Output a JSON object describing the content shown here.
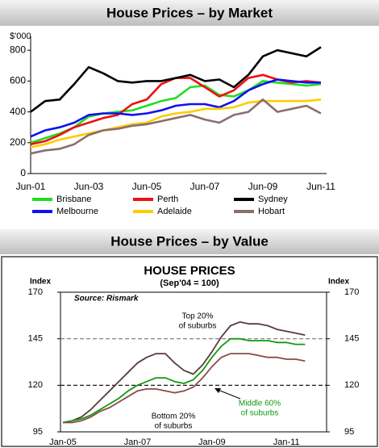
{
  "chart_data": [
    {
      "type": "line",
      "title": "House Prices – by Market",
      "ylabel": "$'000",
      "categories": [
        "Jun-01",
        null,
        null,
        null,
        "Jun-03",
        null,
        null,
        null,
        "Jun-05",
        null,
        null,
        null,
        "Jun-07",
        null,
        null,
        null,
        "Jun-09",
        null,
        null,
        null,
        "Jun-11"
      ],
      "ylim": [
        0,
        890
      ],
      "yticks": [
        0,
        200,
        400,
        600,
        800
      ],
      "legend": "bottom",
      "series": [
        {
          "name": "Brisbane",
          "color": "#22dd22",
          "values": [
            200,
            230,
            260,
            300,
            370,
            390,
            400,
            410,
            440,
            470,
            490,
            560,
            570,
            510,
            500,
            540,
            600,
            590,
            580,
            570,
            580
          ]
        },
        {
          "name": "Perth",
          "color": "#ee1111",
          "values": [
            190,
            210,
            250,
            300,
            330,
            360,
            380,
            450,
            480,
            580,
            620,
            620,
            560,
            500,
            540,
            620,
            640,
            610,
            590,
            600,
            590
          ]
        },
        {
          "name": "Sydney",
          "color": "#000000",
          "values": [
            400,
            470,
            480,
            580,
            690,
            650,
            600,
            590,
            600,
            600,
            620,
            640,
            600,
            610,
            560,
            640,
            760,
            800,
            780,
            760,
            820
          ]
        },
        {
          "name": "Melbourne",
          "color": "#1111ee",
          "values": [
            240,
            280,
            300,
            330,
            380,
            390,
            390,
            380,
            390,
            410,
            440,
            450,
            450,
            430,
            470,
            540,
            580,
            610,
            600,
            590,
            590
          ]
        },
        {
          "name": "Adelaide",
          "color": "#ffcc00",
          "values": [
            170,
            190,
            220,
            240,
            260,
            280,
            300,
            320,
            330,
            370,
            390,
            400,
            420,
            420,
            430,
            460,
            470,
            470,
            470,
            470,
            480
          ]
        },
        {
          "name": "Hobart",
          "color": "#8a6e6e",
          "values": [
            130,
            150,
            160,
            190,
            250,
            280,
            290,
            310,
            320,
            340,
            360,
            380,
            350,
            330,
            380,
            400,
            480,
            400,
            420,
            440,
            390
          ]
        }
      ]
    },
    {
      "type": "line",
      "panel_title": "House Prices – by Value",
      "title": "HOUSE PRICES",
      "subtitle": "(Sep'04 = 100)",
      "source": "Source: Rismark",
      "ylabel": "Index",
      "y2label": "Index",
      "categories": [
        "Jan-05",
        null,
        null,
        null,
        null,
        null,
        null,
        null,
        "Jan-07",
        null,
        null,
        null,
        null,
        null,
        null,
        null,
        "Jan-09",
        null,
        null,
        null,
        null,
        null,
        null,
        null,
        "Jan-11",
        null,
        null
      ],
      "ylim": [
        95,
        170
      ],
      "yticks": [
        95,
        120,
        145,
        170
      ],
      "y2lim": [
        95,
        170
      ],
      "y2ticks": [
        95,
        120,
        145,
        170
      ],
      "dashed_grid": [
        120,
        145
      ],
      "series": [
        {
          "color": "#5a3a3a",
          "values": [
            100,
            101,
            103,
            107,
            112,
            117,
            122,
            127,
            132,
            135,
            137,
            137,
            132,
            128,
            126,
            131,
            138,
            146,
            152,
            154,
            153,
            153,
            152,
            150,
            149,
            148,
            147
          ]
        },
        {
          "color": "#119911",
          "values": [
            100,
            101,
            102,
            104,
            107,
            110,
            113,
            117,
            120,
            122,
            124,
            124,
            122,
            121,
            123,
            128,
            135,
            141,
            145,
            145,
            144,
            144,
            144,
            143,
            143,
            142,
            142
          ]
        },
        {
          "color": "#8a4a4a",
          "values": [
            100,
            100,
            101,
            103,
            106,
            108,
            111,
            114,
            117,
            118,
            118,
            117,
            116,
            117,
            119,
            124,
            130,
            135,
            137,
            137,
            137,
            136,
            135,
            135,
            134,
            134,
            133
          ]
        }
      ],
      "annotations": [
        {
          "lines": [
            "Top 20%",
            "of suburbs"
          ]
        },
        {
          "lines": [
            "Middle 60%",
            "of suburbs"
          ]
        },
        {
          "lines": [
            "Bottom 20%",
            "of suburbs"
          ]
        }
      ]
    }
  ]
}
